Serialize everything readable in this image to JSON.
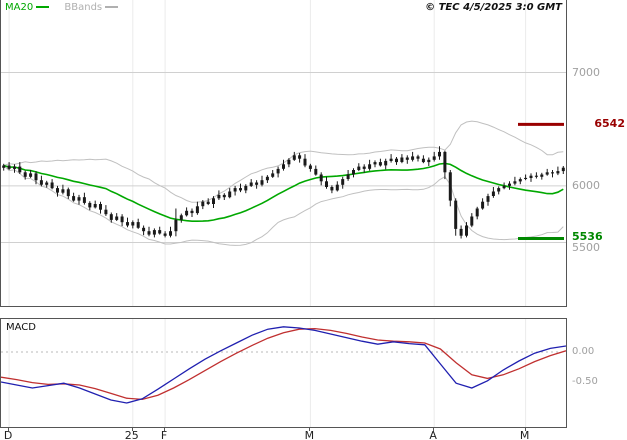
{
  "legend": {
    "items": [
      {
        "label": "MA20",
        "color": "#00a800"
      },
      {
        "label": "BBands",
        "color": "#b0b0b0"
      }
    ]
  },
  "copyright": "© TEC 4/5/2025 3:0 GMT",
  "macd_title": "MACD",
  "chart_data": {
    "type": "candlestick",
    "title": "",
    "price_ylim": [
      4940,
      7640
    ],
    "price_gridlines": [
      7000,
      6000,
      5500
    ],
    "price_axis_labels": [
      {
        "text": "7000",
        "value": 7000,
        "color": "#a0a0a0"
      },
      {
        "text": "6542",
        "value": 6542,
        "color": "#990000",
        "bold": true,
        "align": "right"
      },
      {
        "text": "6000",
        "value": 6000,
        "color": "#a0a0a0"
      },
      {
        "text": "5536",
        "value": 5536,
        "color": "#008800",
        "bold": true,
        "dy": -1
      },
      {
        "text": "5500",
        "value": 5500,
        "color": "#a0a0a0",
        "dy": 5
      }
    ],
    "levels": [
      {
        "name": "resistance",
        "value": 6542,
        "color": "#990000"
      },
      {
        "name": "support",
        "value": 5536,
        "color": "#008800"
      }
    ],
    "x_ticks": [
      {
        "label": "D",
        "index": 1
      },
      {
        "label": "25",
        "index": 24
      },
      {
        "label": "F",
        "index": 30
      },
      {
        "label": "M",
        "index": 57
      },
      {
        "label": "A",
        "index": 80
      },
      {
        "label": "M",
        "index": 97
      }
    ],
    "overlays": {
      "ma_period": 20,
      "bollinger_mult": 2
    },
    "colors": {
      "candle": "#1a1a1a",
      "ma20": "#00a800",
      "bollinger": "#c0c0c0",
      "grid": "#d0d0d0",
      "vgrid": "#ebebeb"
    },
    "candles": [
      [
        6160,
        6195,
        6135,
        6180
      ],
      [
        6180,
        6210,
        6140,
        6150
      ],
      [
        6150,
        6190,
        6115,
        6170
      ],
      [
        6170,
        6210,
        6105,
        6120
      ],
      [
        6120,
        6135,
        6055,
        6080
      ],
      [
        6080,
        6140,
        6070,
        6110
      ],
      [
        6110,
        6130,
        6015,
        6050
      ],
      [
        6050,
        6090,
        5995,
        6010
      ],
      [
        6010,
        6045,
        5985,
        6030
      ],
      [
        6030,
        6060,
        5970,
        5980
      ],
      [
        5980,
        6000,
        5905,
        5940
      ],
      [
        5940,
        6010,
        5925,
        5970
      ],
      [
        5970,
        5985,
        5885,
        5910
      ],
      [
        5910,
        5940,
        5860,
        5870
      ],
      [
        5870,
        5920,
        5835,
        5900
      ],
      [
        5900,
        5940,
        5835,
        5850
      ],
      [
        5850,
        5865,
        5785,
        5810
      ],
      [
        5810,
        5870,
        5800,
        5840
      ],
      [
        5840,
        5860,
        5755,
        5790
      ],
      [
        5790,
        5830,
        5735,
        5750
      ],
      [
        5750,
        5765,
        5675,
        5700
      ],
      [
        5700,
        5760,
        5690,
        5730
      ],
      [
        5730,
        5750,
        5645,
        5680
      ],
      [
        5680,
        5720,
        5635,
        5650
      ],
      [
        5650,
        5695,
        5625,
        5680
      ],
      [
        5680,
        5710,
        5620,
        5630
      ],
      [
        5630,
        5650,
        5565,
        5600
      ],
      [
        5600,
        5640,
        5555,
        5570
      ],
      [
        5570,
        5625,
        5545,
        5610
      ],
      [
        5610,
        5640,
        5570,
        5580
      ],
      [
        5580,
        5600,
        5545,
        5560
      ],
      [
        5560,
        5640,
        5545,
        5600
      ],
      [
        5600,
        5800,
        5555,
        5700
      ],
      [
        5700,
        5755,
        5675,
        5740
      ],
      [
        5740,
        5810,
        5730,
        5780
      ],
      [
        5780,
        5800,
        5725,
        5760
      ],
      [
        5760,
        5860,
        5745,
        5820
      ],
      [
        5820,
        5875,
        5795,
        5860
      ],
      [
        5860,
        5890,
        5830,
        5840
      ],
      [
        5840,
        5910,
        5805,
        5890
      ],
      [
        5890,
        5960,
        5875,
        5920
      ],
      [
        5920,
        5935,
        5875,
        5900
      ],
      [
        5900,
        5980,
        5890,
        5950
      ],
      [
        5950,
        6000,
        5915,
        5980
      ],
      [
        5980,
        6020,
        5945,
        5960
      ],
      [
        5960,
        6015,
        5935,
        6000
      ],
      [
        6000,
        6060,
        5990,
        6030
      ],
      [
        6030,
        6050,
        5975,
        6010
      ],
      [
        6010,
        6090,
        5995,
        6050
      ],
      [
        6050,
        6095,
        6025,
        6080
      ],
      [
        6080,
        6140,
        6070,
        6110
      ],
      [
        6110,
        6170,
        6075,
        6150
      ],
      [
        6150,
        6230,
        6135,
        6190
      ],
      [
        6190,
        6245,
        6165,
        6230
      ],
      [
        6230,
        6300,
        6220,
        6270
      ],
      [
        6270,
        6290,
        6205,
        6240
      ],
      [
        6240,
        6280,
        6165,
        6180
      ],
      [
        6180,
        6195,
        6125,
        6150
      ],
      [
        6150,
        6180,
        6090,
        6100
      ],
      [
        6100,
        6120,
        6005,
        6040
      ],
      [
        6040,
        6080,
        5975,
        5990
      ],
      [
        5990,
        6005,
        5935,
        5960
      ],
      [
        5960,
        6040,
        5950,
        6010
      ],
      [
        6010,
        6080,
        5975,
        6060
      ],
      [
        6060,
        6140,
        6045,
        6100
      ],
      [
        6100,
        6155,
        6075,
        6140
      ],
      [
        6140,
        6200,
        6130,
        6170
      ],
      [
        6170,
        6190,
        6115,
        6150
      ],
      [
        6150,
        6230,
        6135,
        6190
      ],
      [
        6190,
        6225,
        6165,
        6210
      ],
      [
        6210,
        6240,
        6170,
        6180
      ],
      [
        6180,
        6240,
        6145,
        6220
      ],
      [
        6220,
        6280,
        6205,
        6240
      ],
      [
        6240,
        6255,
        6185,
        6210
      ],
      [
        6210,
        6280,
        6200,
        6250
      ],
      [
        6250,
        6270,
        6195,
        6230
      ],
      [
        6230,
        6300,
        6215,
        6260
      ],
      [
        6260,
        6275,
        6215,
        6240
      ],
      [
        6240,
        6270,
        6200,
        6210
      ],
      [
        6210,
        6250,
        6175,
        6230
      ],
      [
        6230,
        6300,
        6215,
        6260
      ],
      [
        6260,
        6350,
        6230,
        6300
      ],
      [
        6300,
        6310,
        6060,
        6120
      ],
      [
        6120,
        6140,
        5820,
        5870
      ],
      [
        5870,
        5890,
        5560,
        5620
      ],
      [
        5620,
        5650,
        5536,
        5560
      ],
      [
        5560,
        5680,
        5545,
        5650
      ],
      [
        5650,
        5760,
        5635,
        5730
      ],
      [
        5730,
        5815,
        5705,
        5800
      ],
      [
        5800,
        5890,
        5790,
        5860
      ],
      [
        5860,
        5930,
        5825,
        5910
      ],
      [
        5910,
        5990,
        5895,
        5950
      ],
      [
        5950,
        5995,
        5925,
        5980
      ],
      [
        5980,
        6030,
        5970,
        6000
      ],
      [
        6000,
        6040,
        5965,
        6020
      ],
      [
        6020,
        6080,
        6005,
        6040
      ],
      [
        6040,
        6075,
        6015,
        6060
      ],
      [
        6060,
        6100,
        6050,
        6070
      ],
      [
        6070,
        6110,
        6035,
        6090
      ],
      [
        6090,
        6120,
        6065,
        6080
      ],
      [
        6080,
        6115,
        6055,
        6100
      ],
      [
        6100,
        6150,
        6090,
        6120
      ],
      [
        6120,
        6140,
        6075,
        6110
      ],
      [
        6110,
        6170,
        6095,
        6130
      ],
      [
        6130,
        6175,
        6105,
        6160
      ]
    ],
    "macd": {
      "type": "line",
      "ylim": [
        -1.25,
        0.55
      ],
      "zero_line": 0,
      "axis_labels": [
        {
          "text": "0.00",
          "value": 0,
          "color": "#a0a0a0"
        },
        {
          "text": "-0.50",
          "value": -0.5,
          "color": "#a0a0a0"
        }
      ],
      "colors": {
        "macd": "#2020b0",
        "signal": "#c03030"
      },
      "macd_line": [
        -0.5,
        -0.55,
        -0.6,
        -0.56,
        -0.52,
        -0.6,
        -0.7,
        -0.8,
        -0.85,
        -0.78,
        -0.62,
        -0.45,
        -0.28,
        -0.12,
        0.02,
        0.15,
        0.28,
        0.38,
        0.42,
        0.4,
        0.36,
        0.3,
        0.24,
        0.18,
        0.13,
        0.17,
        0.14,
        0.12,
        -0.2,
        -0.52,
        -0.6,
        -0.48,
        -0.3,
        -0.15,
        -0.02,
        0.06,
        0.1
      ],
      "signal_line": [
        -0.42,
        -0.46,
        -0.51,
        -0.54,
        -0.53,
        -0.55,
        -0.61,
        -0.69,
        -0.77,
        -0.79,
        -0.72,
        -0.6,
        -0.46,
        -0.31,
        -0.16,
        -0.02,
        0.11,
        0.23,
        0.32,
        0.38,
        0.39,
        0.36,
        0.31,
        0.25,
        0.2,
        0.18,
        0.17,
        0.15,
        0.05,
        -0.18,
        -0.38,
        -0.44,
        -0.38,
        -0.28,
        -0.16,
        -0.06,
        0.02
      ]
    }
  }
}
